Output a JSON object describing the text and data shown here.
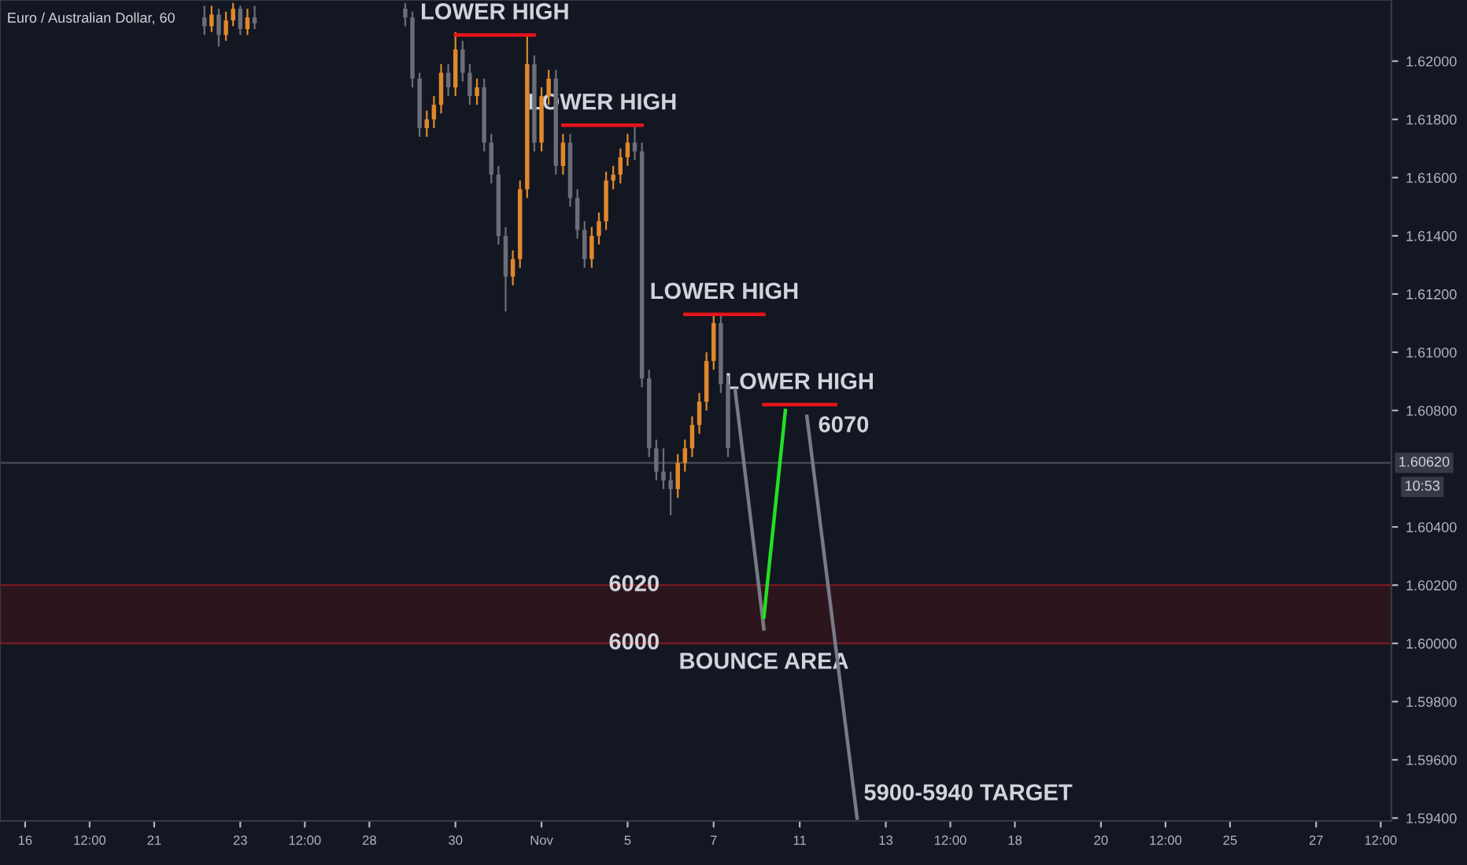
{
  "chart_data": {
    "type": "candlestick",
    "title": "Euro / Australian Dollar, 60",
    "categories": [
      null,
      null,
      null,
      "16",
      null,
      null,
      null,
      null,
      null,
      null,
      null,
      null,
      "12:00",
      null,
      null,
      null,
      null,
      null,
      null,
      null,
      null,
      "21",
      null,
      null,
      null,
      null,
      null,
      null,
      null,
      null,
      null,
      null,
      null,
      "23",
      null,
      null,
      null,
      null,
      null,
      null,
      null,
      null,
      "12:00",
      null,
      null,
      null,
      null,
      null,
      null,
      null,
      null,
      "28",
      null,
      null,
      null,
      null,
      null,
      null,
      null,
      null,
      null,
      null,
      null,
      "30",
      null,
      null,
      null,
      null,
      null,
      null,
      null,
      null,
      null,
      null,
      null,
      "Nov",
      null,
      null,
      null,
      null,
      null,
      null,
      null,
      null,
      null,
      null,
      null,
      "5",
      null,
      null,
      null,
      null,
      null,
      null,
      null,
      null,
      null,
      null,
      null,
      "7",
      null,
      null,
      null,
      null,
      null,
      null,
      null,
      null,
      null,
      null,
      null,
      "11",
      null,
      null,
      null,
      null,
      null,
      null,
      null,
      null,
      null,
      null,
      null,
      "13",
      null,
      null,
      null,
      null,
      null,
      null,
      null,
      null,
      "12:00",
      null,
      null,
      null,
      null,
      null,
      null,
      null,
      null,
      "18",
      null,
      null,
      null,
      null,
      null,
      null,
      null,
      null,
      null,
      null,
      null,
      "20",
      null,
      null,
      null,
      null,
      null,
      null,
      null,
      null,
      "12:00",
      null,
      null,
      null,
      null,
      null,
      null,
      null,
      null,
      "25",
      null,
      null,
      null,
      null,
      null,
      null,
      null,
      null,
      null,
      null,
      null,
      "27",
      null,
      null,
      null,
      null,
      null,
      null,
      null,
      null,
      "12:00",
      null
    ],
    "ylim": [
      1.5939,
      1.6221
    ],
    "yticks": [
      {
        "value": 1.594,
        "label": "1.59400"
      },
      {
        "value": 1.596,
        "label": "1.59600"
      },
      {
        "value": 1.598,
        "label": "1.59800"
      },
      {
        "value": 1.6,
        "label": "1.60000"
      },
      {
        "value": 1.602,
        "label": "1.60200"
      },
      {
        "value": 1.604,
        "label": "1.60400"
      },
      {
        "value": 1.608,
        "label": "1.60800"
      },
      {
        "value": 1.61,
        "label": "1.61000"
      },
      {
        "value": 1.612,
        "label": "1.61200"
      },
      {
        "value": 1.614,
        "label": "1.61400"
      },
      {
        "value": 1.616,
        "label": "1.61600"
      },
      {
        "value": 1.618,
        "label": "1.61800"
      },
      {
        "value": 1.62,
        "label": "1.62000"
      }
    ],
    "grid": false,
    "series": [
      {
        "ohlc": [
          null,
          null,
          null,
          null,
          null,
          null,
          null,
          null,
          null,
          null,
          null,
          null,
          null,
          null,
          null,
          null,
          null,
          null,
          null,
          null,
          null,
          null,
          null,
          null,
          null,
          null,
          null,
          null,
          [
            1.6215,
            1.6219,
            1.6209,
            1.6212
          ],
          [
            1.6212,
            1.6219,
            1.621,
            1.6216
          ],
          [
            1.6216,
            1.6218,
            1.6205,
            1.6209
          ],
          [
            1.6209,
            1.6217,
            1.6207,
            1.6214
          ],
          [
            1.6214,
            1.622,
            1.6212,
            1.6218
          ],
          [
            1.6218,
            1.6219,
            1.6209,
            1.6211
          ],
          [
            1.6211,
            1.6218,
            1.6209,
            1.6215
          ],
          [
            1.6215,
            1.6219,
            1.6211,
            1.6213
          ],
          null,
          null,
          null,
          null,
          null,
          null,
          null,
          null,
          null,
          null,
          null,
          null,
          null,
          null,
          null,
          null,
          null,
          null,
          null,
          null,
          [
            1.6218,
            1.622,
            1.6212,
            1.6215
          ],
          [
            1.6215,
            1.6217,
            1.6191,
            1.6194
          ],
          [
            1.6194,
            1.6196,
            1.6174,
            1.6177
          ],
          [
            1.6177,
            1.6183,
            1.6174,
            1.618
          ],
          [
            1.618,
            1.6188,
            1.6177,
            1.6185
          ],
          [
            1.6185,
            1.6199,
            1.6182,
            1.6196
          ],
          [
            1.6196,
            1.6199,
            1.6188,
            1.6191
          ],
          [
            1.6191,
            1.621,
            1.6188,
            1.6204
          ],
          [
            1.6204,
            1.6207,
            1.6193,
            1.6196
          ],
          [
            1.6196,
            1.6199,
            1.6185,
            1.6188
          ],
          [
            1.6188,
            1.6194,
            1.6185,
            1.6191
          ],
          [
            1.6191,
            1.6194,
            1.6169,
            1.6172
          ],
          [
            1.6172,
            1.6175,
            1.6158,
            1.6161
          ],
          [
            1.6161,
            1.6164,
            1.6137,
            1.614
          ],
          [
            1.614,
            1.6143,
            1.6114,
            1.6126
          ],
          [
            1.6126,
            1.6135,
            1.6123,
            1.6132
          ],
          [
            1.6132,
            1.6159,
            1.6129,
            1.6156
          ],
          [
            1.6156,
            1.6209,
            1.6153,
            1.6199
          ],
          [
            1.6199,
            1.6202,
            1.6169,
            1.6172
          ],
          [
            1.6172,
            1.6191,
            1.6169,
            1.6188
          ],
          [
            1.6188,
            1.6197,
            1.6185,
            1.6194
          ],
          [
            1.6194,
            1.6197,
            1.6161,
            1.6164
          ],
          [
            1.6164,
            1.6175,
            1.6161,
            1.6172
          ],
          [
            1.6172,
            1.6175,
            1.615,
            1.6153
          ],
          [
            1.6153,
            1.6156,
            1.6139,
            1.6142
          ],
          [
            1.6142,
            1.6145,
            1.6129,
            1.6132
          ],
          [
            1.6132,
            1.6143,
            1.6129,
            1.614
          ],
          [
            1.614,
            1.6148,
            1.6137,
            1.6145
          ],
          [
            1.6145,
            1.6162,
            1.6142,
            1.6159
          ],
          [
            1.6159,
            1.6164,
            1.6156,
            1.6161
          ],
          [
            1.6161,
            1.617,
            1.6158,
            1.6167
          ],
          [
            1.6167,
            1.6175,
            1.6164,
            1.6172
          ],
          [
            1.6172,
            1.6178,
            1.6166,
            1.6169
          ],
          [
            1.6169,
            1.6172,
            1.6088,
            1.6091
          ],
          [
            1.6091,
            1.6094,
            1.6064,
            1.6067
          ],
          [
            1.6067,
            1.607,
            1.6056,
            1.6059
          ],
          [
            1.6059,
            1.6067,
            1.6053,
            1.6056
          ],
          [
            1.6056,
            1.6059,
            1.6044,
            1.6053
          ],
          [
            1.6053,
            1.6065,
            1.605,
            1.6062
          ],
          [
            1.6062,
            1.607,
            1.6059,
            1.6067
          ],
          [
            1.6067,
            1.6078,
            1.6064,
            1.6075
          ],
          [
            1.6075,
            1.6086,
            1.6072,
            1.6083
          ],
          [
            1.6083,
            1.61,
            1.608,
            1.6097
          ],
          [
            1.6097,
            1.6113,
            1.6094,
            1.611
          ],
          [
            1.611,
            1.6113,
            1.6086,
            1.6089
          ],
          [
            1.6089,
            1.6092,
            1.6064,
            1.6067
          ],
          null,
          null,
          null,
          null,
          null,
          null,
          null,
          null,
          null,
          null,
          null,
          null,
          null,
          null,
          null,
          null,
          null,
          null,
          null,
          null,
          null,
          null,
          null,
          null,
          null,
          null,
          null,
          null,
          null,
          null,
          null,
          null,
          null,
          null,
          null,
          null,
          null,
          null,
          null,
          null,
          null,
          null,
          null,
          null,
          null,
          null,
          null,
          null,
          null,
          null,
          null,
          null,
          null,
          null,
          null,
          null,
          null,
          null,
          null,
          null,
          null,
          null,
          null,
          null,
          null,
          null,
          null,
          null,
          null,
          null,
          null,
          null,
          null,
          null,
          null,
          null,
          null,
          null,
          null,
          null,
          null,
          null,
          null,
          null,
          null,
          null,
          null,
          null,
          null,
          null,
          null,
          null
        ],
        "colors": [
          null,
          null,
          null,
          null,
          null,
          null,
          null,
          null,
          null,
          null,
          null,
          null,
          null,
          null,
          null,
          null,
          null,
          null,
          null,
          null,
          null,
          null,
          null,
          null,
          null,
          null,
          null,
          null,
          "#6b6e78",
          "#e0882b",
          "#6b6e78",
          "#e0882b",
          "#e0882b",
          "#6b6e78",
          "#e0882b",
          "#6b6e78",
          null,
          null,
          null,
          null,
          null,
          null,
          null,
          null,
          null,
          null,
          null,
          null,
          null,
          null,
          null,
          null,
          null,
          null,
          null,
          null,
          "#6b6e78",
          "#6b6e78",
          "#6b6e78",
          "#e0882b",
          "#e0882b",
          "#e0882b",
          "#6b6e78",
          "#e0882b",
          "#6b6e78",
          "#6b6e78",
          "#e0882b",
          "#6b6e78",
          "#6b6e78",
          "#6b6e78",
          "#6b6e78",
          "#e0882b",
          "#e0882b",
          "#e0882b",
          "#6b6e78",
          "#e0882b",
          "#e0882b",
          "#6b6e78",
          "#e0882b",
          "#6b6e78",
          "#6b6e78",
          "#6b6e78",
          "#e0882b",
          "#e0882b",
          "#e0882b",
          "#e0882b",
          "#e0882b",
          "#e0882b",
          "#6b6e78",
          "#6b6e78",
          "#6b6e78",
          "#6b6e78",
          "#6b6e78",
          "#6b6e78",
          "#e0882b",
          "#e0882b",
          "#e0882b",
          "#e0882b",
          "#e0882b",
          "#e0882b",
          "#6b6e78",
          "#6b6e78",
          null,
          null,
          null,
          null,
          null,
          null,
          null,
          null,
          null,
          null,
          null,
          null,
          null,
          null,
          null,
          null,
          null,
          null,
          null,
          null,
          null,
          null,
          null,
          null,
          null,
          null,
          null,
          null,
          null,
          null,
          null,
          null,
          null,
          null,
          null,
          null,
          null,
          null,
          null,
          null,
          null,
          null,
          null,
          null,
          null,
          null,
          null,
          null,
          null,
          null,
          null,
          null,
          null,
          null,
          null,
          null,
          null,
          null,
          null,
          null,
          null,
          null,
          null,
          null,
          null,
          null,
          null,
          null,
          null,
          null,
          null,
          null,
          null,
          null,
          null,
          null,
          null,
          null,
          null,
          null,
          null,
          null,
          null,
          null,
          null,
          null,
          null,
          null,
          null,
          null,
          null,
          null
        ]
      },
      {
        "type": "line",
        "color": "#787b86",
        "values": [
          null,
          null,
          null,
          null,
          null,
          null,
          null,
          null,
          null,
          null,
          null,
          null,
          null,
          null,
          null,
          null,
          null,
          null,
          null,
          null,
          null,
          null,
          null,
          null,
          null,
          null,
          null,
          null,
          null,
          null,
          null,
          null,
          null,
          null,
          null,
          null,
          null,
          null,
          null,
          null,
          null,
          null,
          null,
          null,
          null,
          null,
          null,
          null,
          null,
          null,
          null,
          null,
          null,
          null,
          null,
          null,
          null,
          null,
          null,
          null,
          null,
          null,
          null,
          null,
          null,
          null,
          null,
          null,
          null,
          null,
          null,
          null,
          null,
          null,
          null,
          null,
          null,
          null,
          null,
          null,
          null,
          null,
          null,
          null,
          null,
          null,
          null,
          null,
          null,
          null,
          null,
          null,
          null,
          null,
          null,
          null,
          null,
          null,
          null,
          null,
          null,
          null,
          1.6087,
          null,
          null,
          null,
          1.6005,
          null,
          null,
          null,
          null,
          null,
          null,
          null,
          null,
          null,
          null,
          null,
          null,
          null,
          null,
          null,
          null,
          null,
          null,
          null,
          null,
          null,
          null,
          null,
          null,
          null,
          null,
          null,
          null,
          null,
          null,
          null,
          null,
          null,
          null,
          null,
          null,
          null,
          null,
          null,
          null,
          null,
          null,
          null,
          null,
          null,
          null,
          null,
          null,
          null,
          null,
          null,
          null,
          null,
          null,
          null,
          null,
          null,
          null,
          null,
          null,
          null,
          null,
          null,
          null,
          null,
          null,
          null,
          null,
          null,
          null,
          null,
          null,
          null,
          null,
          null,
          null,
          null,
          null,
          null,
          null,
          null,
          null,
          null,
          null,
          null,
          null,
          null
        ]
      },
      {
        "type": "line",
        "color": "#22e022",
        "values": [
          null,
          null,
          null,
          null,
          null,
          null,
          null,
          null,
          null,
          null,
          null,
          null,
          null,
          null,
          null,
          null,
          null,
          null,
          null,
          null,
          null,
          null,
          null,
          null,
          null,
          null,
          null,
          null,
          null,
          null,
          null,
          null,
          null,
          null,
          null,
          null,
          null,
          null,
          null,
          null,
          null,
          null,
          null,
          null,
          null,
          null,
          null,
          null,
          null,
          null,
          null,
          null,
          null,
          null,
          null,
          null,
          null,
          null,
          null,
          null,
          null,
          null,
          null,
          null,
          null,
          null,
          null,
          null,
          null,
          null,
          null,
          null,
          null,
          null,
          null,
          null,
          null,
          null,
          null,
          null,
          null,
          null,
          null,
          null,
          null,
          null,
          null,
          null,
          null,
          null,
          null,
          null,
          null,
          null,
          null,
          null,
          null,
          null,
          null,
          null,
          null,
          null,
          null,
          null,
          null,
          null,
          1.6009,
          null,
          null,
          1.608,
          null,
          null,
          null,
          null,
          null,
          null,
          null,
          null,
          null,
          null,
          null,
          null,
          null,
          null,
          null,
          null,
          null,
          null,
          null,
          null,
          null,
          null,
          null,
          null,
          null,
          null,
          null,
          null,
          null,
          null,
          null,
          null,
          null,
          null,
          null,
          null,
          null,
          null,
          null,
          null,
          null,
          null,
          null,
          null,
          null,
          null,
          null,
          null,
          null,
          null,
          null,
          null,
          null,
          null,
          null,
          null,
          null,
          null,
          null,
          null,
          null,
          null,
          null,
          null,
          null,
          null,
          null,
          null,
          null,
          null,
          null,
          null,
          null,
          null,
          null,
          null,
          null,
          null,
          null,
          null,
          null,
          null,
          null,
          null
        ]
      },
      {
        "type": "line",
        "color": "#787b86",
        "values": [
          null,
          null,
          null,
          null,
          null,
          null,
          null,
          null,
          null,
          null,
          null,
          null,
          null,
          null,
          null,
          null,
          null,
          null,
          null,
          null,
          null,
          null,
          null,
          null,
          null,
          null,
          null,
          null,
          null,
          null,
          null,
          null,
          null,
          null,
          null,
          null,
          null,
          null,
          null,
          null,
          null,
          null,
          null,
          null,
          null,
          null,
          null,
          null,
          null,
          null,
          null,
          null,
          null,
          null,
          null,
          null,
          null,
          null,
          null,
          null,
          null,
          null,
          null,
          null,
          null,
          null,
          null,
          null,
          null,
          null,
          null,
          null,
          null,
          null,
          null,
          null,
          null,
          null,
          null,
          null,
          null,
          null,
          null,
          null,
          null,
          null,
          null,
          null,
          null,
          null,
          null,
          null,
          null,
          null,
          null,
          null,
          null,
          null,
          null,
          null,
          null,
          null,
          null,
          null,
          null,
          null,
          null,
          null,
          null,
          null,
          null,
          null,
          1.6078,
          null,
          null,
          null,
          null,
          null,
          null,
          1.594,
          null,
          null,
          null,
          null,
          null,
          null,
          null,
          null,
          null,
          null,
          null,
          null,
          null,
          null,
          null,
          null,
          null,
          null,
          null,
          null,
          null,
          null,
          null,
          null,
          null,
          null,
          null,
          null,
          null,
          null,
          null,
          null,
          null,
          null,
          null,
          null,
          null,
          null,
          null,
          null,
          null,
          null,
          null,
          null,
          null,
          null,
          null,
          null,
          null,
          null,
          null,
          null,
          null,
          null,
          null,
          null,
          null,
          null,
          null,
          null,
          null,
          null,
          null,
          null,
          null,
          null,
          null,
          null,
          null,
          null,
          null,
          null,
          null,
          null
        ]
      },
      {
        "type": "line",
        "color": "#e8141b",
        "values": [
          null,
          null,
          null,
          null,
          null,
          null,
          null,
          null,
          null,
          null,
          null,
          null,
          null,
          null,
          null,
          null,
          null,
          null,
          null,
          null,
          null,
          null,
          null,
          null,
          null,
          null,
          null,
          null,
          null,
          null,
          null,
          null,
          null,
          null,
          null,
          null,
          null,
          null,
          null,
          null,
          null,
          null,
          null,
          null,
          null,
          null,
          null,
          null,
          null,
          null,
          null,
          null,
          null,
          null,
          null,
          null,
          null,
          null,
          null,
          null,
          null,
          null,
          null,
          1.6209,
          null,
          null,
          null,
          null,
          null,
          null,
          null,
          null,
          null,
          null,
          1.6209,
          null,
          null,
          null,
          null,
          null,
          null,
          null,
          null,
          null,
          null,
          null,
          null,
          null,
          null,
          null,
          null,
          null,
          null,
          null,
          null,
          null,
          null,
          null,
          null,
          null,
          null,
          null,
          null,
          null,
          null,
          null,
          null,
          null,
          null,
          null,
          null,
          null,
          null,
          null,
          null,
          null,
          null,
          null,
          null,
          null,
          null,
          null,
          null,
          null,
          null,
          null,
          null,
          null,
          null,
          null,
          null,
          null,
          null,
          null,
          null,
          null,
          null,
          null,
          null,
          null,
          null,
          null,
          null,
          null,
          null,
          null,
          null,
          null,
          null,
          null,
          null,
          null,
          null,
          null,
          null,
          null,
          null,
          null,
          null,
          null,
          null,
          null,
          null,
          null,
          null,
          null,
          null,
          null,
          null,
          null,
          null,
          null,
          null,
          null,
          null,
          null,
          null,
          null,
          null,
          null,
          null,
          null,
          null,
          null,
          null,
          null,
          null,
          null,
          null,
          null,
          null,
          null,
          null,
          null
        ]
      },
      {
        "type": "line",
        "color": "#e8141b",
        "values": [
          null,
          null,
          null,
          null,
          null,
          null,
          null,
          null,
          null,
          null,
          null,
          null,
          null,
          null,
          null,
          null,
          null,
          null,
          null,
          null,
          null,
          null,
          null,
          null,
          null,
          null,
          null,
          null,
          null,
          null,
          null,
          null,
          null,
          null,
          null,
          null,
          null,
          null,
          null,
          null,
          null,
          null,
          null,
          null,
          null,
          null,
          null,
          null,
          null,
          null,
          null,
          null,
          null,
          null,
          null,
          null,
          null,
          null,
          null,
          null,
          null,
          null,
          null,
          null,
          null,
          null,
          null,
          null,
          null,
          null,
          null,
          null,
          null,
          null,
          null,
          null,
          null,
          null,
          1.6178,
          null,
          null,
          null,
          null,
          null,
          null,
          null,
          null,
          null,
          null,
          1.6178,
          null,
          null,
          null,
          null,
          null,
          null,
          null,
          null,
          null,
          null,
          null,
          null,
          null,
          null,
          null,
          null,
          null,
          null,
          null,
          null,
          null,
          null,
          null,
          null,
          null,
          null,
          null,
          null,
          null,
          null,
          null,
          null,
          null,
          null,
          null,
          null,
          null,
          null,
          null,
          null,
          null,
          null,
          null,
          null,
          null,
          null,
          null,
          null,
          null,
          null,
          null,
          null,
          null,
          null,
          null,
          null,
          null,
          null,
          null,
          null,
          null,
          null,
          null,
          null,
          null,
          null,
          null,
          null,
          null,
          null,
          null,
          null,
          null,
          null,
          null,
          null,
          null,
          null,
          null,
          null,
          null,
          null,
          null,
          null,
          null,
          null,
          null,
          null,
          null,
          null,
          null,
          null,
          null,
          null,
          null,
          null,
          null,
          null,
          null,
          null,
          null,
          null,
          null,
          null
        ]
      },
      {
        "type": "line",
        "color": "#e8141b",
        "values": [
          null,
          null,
          null,
          null,
          null,
          null,
          null,
          null,
          null,
          null,
          null,
          null,
          null,
          null,
          null,
          null,
          null,
          null,
          null,
          null,
          null,
          null,
          null,
          null,
          null,
          null,
          null,
          null,
          null,
          null,
          null,
          null,
          null,
          null,
          null,
          null,
          null,
          null,
          null,
          null,
          null,
          null,
          null,
          null,
          null,
          null,
          null,
          null,
          null,
          null,
          null,
          null,
          null,
          null,
          null,
          null,
          null,
          null,
          null,
          null,
          null,
          null,
          null,
          null,
          null,
          null,
          null,
          null,
          null,
          null,
          null,
          null,
          null,
          null,
          null,
          null,
          null,
          null,
          null,
          null,
          null,
          null,
          null,
          null,
          null,
          null,
          null,
          null,
          null,
          null,
          null,
          null,
          null,
          null,
          null,
          1.6113,
          null,
          null,
          null,
          null,
          null,
          null,
          null,
          null,
          null,
          null,
          1.6113,
          null,
          null,
          null,
          null,
          null,
          null,
          null,
          null,
          null,
          null,
          null,
          null,
          null,
          null,
          null,
          null,
          null,
          null,
          null,
          null,
          null,
          null,
          null,
          null,
          null,
          null,
          null,
          null,
          null,
          null,
          null,
          null,
          null,
          null,
          null,
          null,
          null,
          null,
          null,
          null,
          null,
          null,
          null,
          null,
          null,
          null,
          null,
          null,
          null,
          null,
          null,
          null,
          null,
          null,
          null,
          null,
          null,
          null,
          null,
          null,
          null,
          null,
          null,
          null,
          null,
          null,
          null,
          null,
          null,
          null,
          null,
          null,
          null,
          null,
          null,
          null,
          null,
          null,
          null,
          null,
          null,
          null,
          null,
          null,
          null,
          null,
          null
        ]
      },
      {
        "type": "line",
        "color": "#e8141b",
        "values": [
          null,
          null,
          null,
          null,
          null,
          null,
          null,
          null,
          null,
          null,
          null,
          null,
          null,
          null,
          null,
          null,
          null,
          null,
          null,
          null,
          null,
          null,
          null,
          null,
          null,
          null,
          null,
          null,
          null,
          null,
          null,
          null,
          null,
          null,
          null,
          null,
          null,
          null,
          null,
          null,
          null,
          null,
          null,
          null,
          null,
          null,
          null,
          null,
          null,
          null,
          null,
          null,
          null,
          null,
          null,
          null,
          null,
          null,
          null,
          null,
          null,
          null,
          null,
          null,
          null,
          null,
          null,
          null,
          null,
          null,
          null,
          null,
          null,
          null,
          null,
          null,
          null,
          null,
          null,
          null,
          null,
          null,
          null,
          null,
          null,
          null,
          null,
          null,
          null,
          null,
          null,
          null,
          null,
          null,
          null,
          null,
          null,
          null,
          null,
          null,
          null,
          null,
          null,
          null,
          null,
          null,
          1.6082,
          null,
          null,
          null,
          null,
          null,
          null,
          null,
          null,
          null,
          1.6082,
          null,
          null,
          null,
          null,
          null,
          null,
          null,
          null,
          null,
          null,
          null,
          null,
          null,
          null,
          null,
          null,
          null,
          null,
          null,
          null,
          null,
          null,
          null,
          null,
          null,
          null,
          null,
          null,
          null,
          null,
          null,
          null,
          null,
          null,
          null,
          null,
          null,
          null,
          null,
          null,
          null,
          null,
          null,
          null,
          null,
          null,
          null,
          null,
          null,
          null,
          null,
          null,
          null,
          null,
          null,
          null,
          null,
          null,
          null,
          null,
          null,
          null,
          null,
          null,
          null,
          null,
          null,
          null,
          null,
          null,
          null,
          null,
          null,
          null,
          null,
          null,
          null
        ]
      }
    ],
    "ref_lines": [
      {
        "axis": "y",
        "value": 1.6062,
        "label": "1.60620",
        "color": "#4a4d57"
      }
    ],
    "bands": [
      {
        "axis": "y",
        "from": 1.6,
        "to": 1.602,
        "color": "#2d151e",
        "label": "BOUNCE AREA"
      }
    ],
    "annotations": [
      {
        "text": "LOWER HIGH",
        "y": 1.6209
      },
      {
        "text": "LOWER HIGH",
        "y": 1.6178
      },
      {
        "text": "LOWER HIGH",
        "y": 1.6113
      },
      {
        "text": "LOWER HIGH",
        "y": 1.6082
      },
      "6070",
      {
        "text": "6020",
        "y": 1.602
      },
      {
        "text": "6000",
        "y": 1.6
      },
      "5900-5940 TARGET",
      "10:53"
    ]
  }
}
